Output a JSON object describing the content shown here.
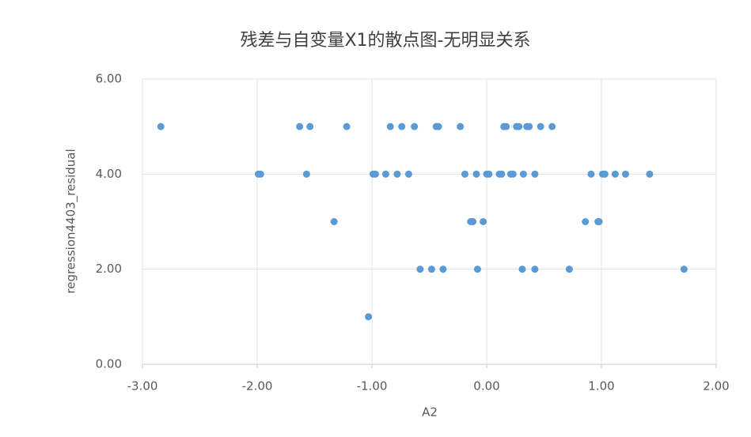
{
  "chart_data": {
    "type": "scatter",
    "title": "残差与自变量X1的散点图-无明显关系",
    "x_label": "A2",
    "y_label": "regression4403_residual",
    "xlim": [
      -3,
      2
    ],
    "xticks": [
      {
        "value": -3,
        "label": "-3.00"
      },
      {
        "value": -2,
        "label": "-2.00"
      },
      {
        "value": -1,
        "label": "-1.00"
      },
      {
        "value": 0,
        "label": "0.00"
      },
      {
        "value": 1,
        "label": "1.00"
      },
      {
        "value": 2,
        "label": "2.00"
      }
    ],
    "ylim": [
      0,
      6
    ],
    "yticks": [
      {
        "value": 0,
        "label": "0.00"
      },
      {
        "value": 2,
        "label": "2.00"
      },
      {
        "value": 4,
        "label": "4.00"
      },
      {
        "value": 6,
        "label": "6.00"
      }
    ],
    "grid": true,
    "series": [
      {
        "color": "#5b9bd5",
        "x": [
          -2.84,
          -1.63,
          -1.54,
          -1.22,
          -0.84,
          -0.74,
          -0.63,
          -0.44,
          -0.42,
          -0.23,
          0.15,
          0.17,
          0.26,
          0.28,
          0.35,
          0.37,
          0.47,
          0.57,
          -1.99,
          -1.97,
          -1.57,
          -0.99,
          -0.97,
          -0.88,
          -0.78,
          -0.68,
          -0.19,
          -0.09,
          0.0,
          0.02,
          0.11,
          0.13,
          0.21,
          0.23,
          0.32,
          0.42,
          0.91,
          1.01,
          1.03,
          1.12,
          1.21,
          1.42,
          -1.33,
          -0.14,
          -0.12,
          -0.03,
          0.86,
          0.97,
          0.98,
          -0.58,
          -0.48,
          -0.38,
          -0.08,
          0.31,
          0.42,
          0.72,
          1.72,
          -1.03
        ],
        "values": [
          5,
          5,
          5,
          5,
          5,
          5,
          5,
          5,
          5,
          5,
          5,
          5,
          5,
          5,
          5,
          5,
          5,
          5,
          4,
          4,
          4,
          4,
          4,
          4,
          4,
          4,
          4,
          4,
          4,
          4,
          4,
          4,
          4,
          4,
          4,
          4,
          4,
          4,
          4,
          4,
          4,
          4,
          3,
          3,
          3,
          3,
          3,
          3,
          3,
          2,
          2,
          2,
          2,
          2,
          2,
          2,
          2,
          1
        ]
      }
    ]
  }
}
